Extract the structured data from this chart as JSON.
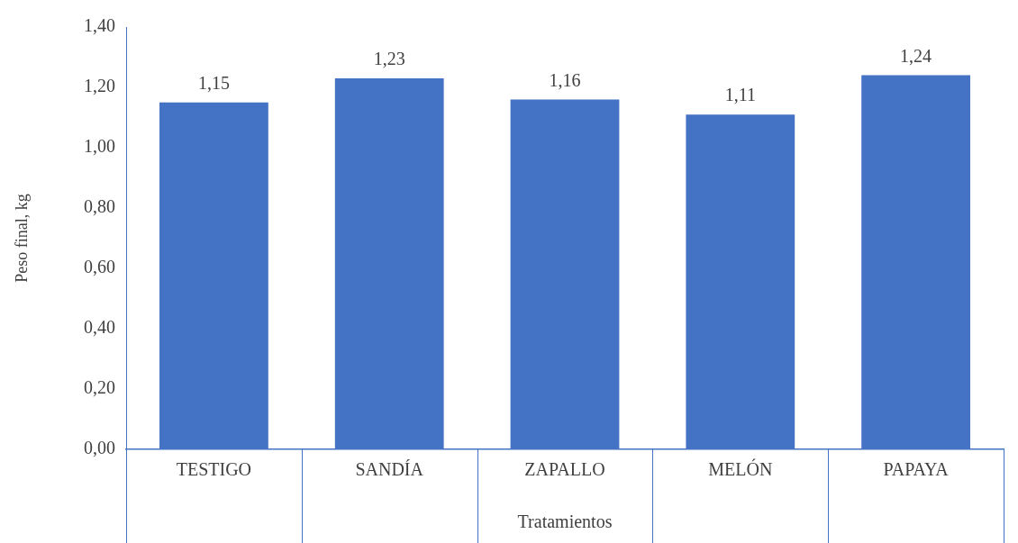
{
  "chart_data": {
    "type": "bar",
    "xlabel": "Tratamientos",
    "ylabel": "Peso final, kg",
    "categories": [
      "TESTIGO",
      "SANDÍA",
      "ZAPALLO",
      "MELÓN",
      "PAPAYA"
    ],
    "values": [
      1.15,
      1.23,
      1.16,
      1.11,
      1.24
    ],
    "value_labels": [
      "1,15",
      "1,23",
      "1,16",
      "1,11",
      "1,24"
    ],
    "color": "#4472c4",
    "ylim": [
      0,
      1.4
    ],
    "yticks": [
      {
        "value": 0,
        "label": "0,00"
      },
      {
        "value": 0.2,
        "label": "0,20"
      },
      {
        "value": 0.4,
        "label": "0,40"
      },
      {
        "value": 0.6,
        "label": "0,60"
      },
      {
        "value": 0.8,
        "label": "0,80"
      },
      {
        "value": 1.0,
        "label": "1,00"
      },
      {
        "value": 1.2,
        "label": "1,20"
      },
      {
        "value": 1.4,
        "label": "1,40"
      }
    ],
    "grid": false,
    "legend": false
  }
}
